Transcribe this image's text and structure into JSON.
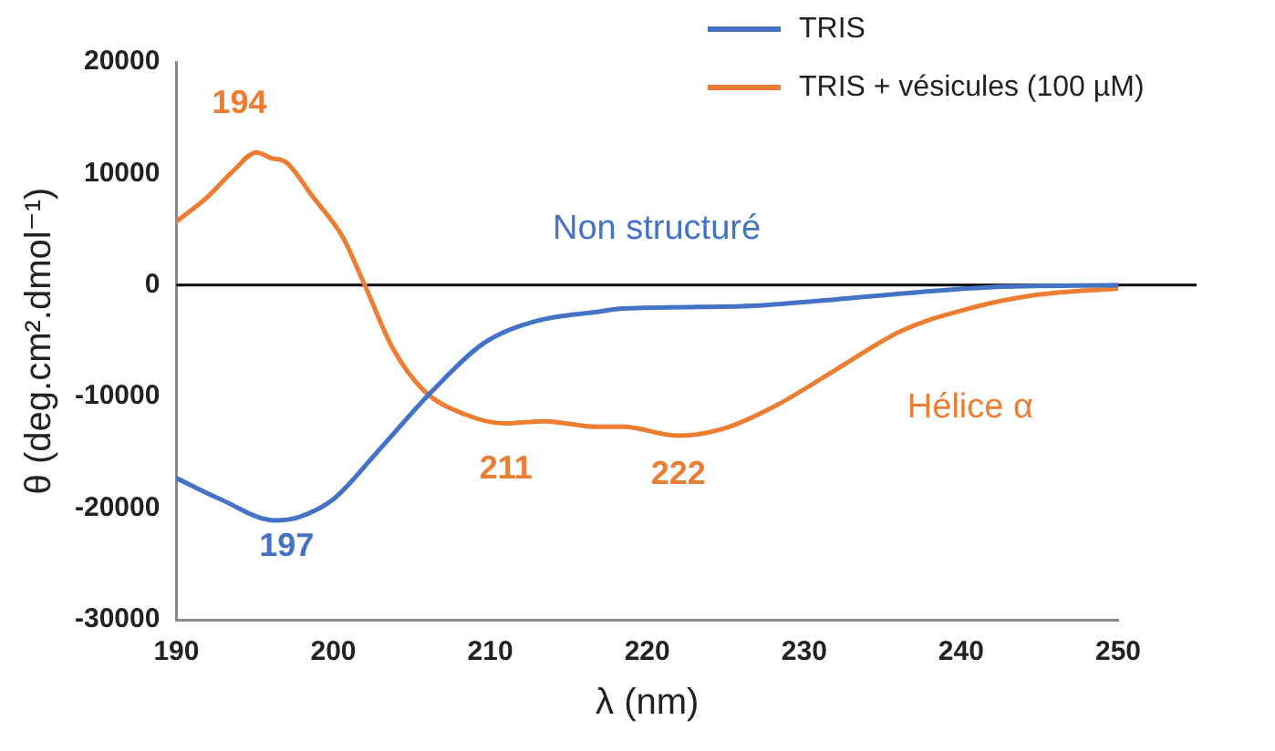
{
  "chart_data": {
    "type": "line",
    "xlabel": "λ (nm)",
    "ylabel": "θ (deg.cm².dmol⁻¹)",
    "xlim": [
      190,
      250
    ],
    "xticks": [
      190,
      200,
      210,
      220,
      230,
      240,
      250
    ],
    "ylim": [
      -30000,
      20000
    ],
    "yticks": [
      -30000,
      -20000,
      -10000,
      0,
      10000,
      20000
    ],
    "grid": false,
    "legend": "top right",
    "marker": "none",
    "line_style": "solid",
    "ref_lines": [
      {
        "axis": "y",
        "value": 0,
        "label": null,
        "color": "#000000"
      }
    ],
    "series": [
      {
        "name": "TRIS",
        "color": "#4472c4",
        "x": [
          190,
          192.8,
          196.3,
          197.8,
          200,
          202.9,
          206.3,
          209.6,
          213,
          216.8,
          218.5,
          226,
          231,
          237.5,
          241.8,
          250
        ],
        "values": [
          -17300,
          -19200,
          -21100,
          -20800,
          -19200,
          -14800,
          -9500,
          -5200,
          -3200,
          -2400,
          -2100,
          -1900,
          -1400,
          -600,
          -200,
          0
        ]
      },
      {
        "name": "TRIS + vésicules (100 µM)",
        "color": "#ed7d31",
        "x": [
          190,
          191.9,
          193.6,
          195.1,
          196,
          197,
          198.7,
          200.6,
          202,
          203.8,
          205.8,
          208.4,
          210.9,
          213.4,
          216.8,
          218.5,
          221.9,
          224.8,
          228.2,
          232,
          236.2,
          240.5,
          244.7,
          250
        ],
        "values": [
          5700,
          7800,
          10200,
          11900,
          11400,
          11000,
          7900,
          4300,
          0,
          -5700,
          -9500,
          -11600,
          -12400,
          -12200,
          -12700,
          -12700,
          -13500,
          -12900,
          -10800,
          -7600,
          -4100,
          -2100,
          -900,
          -300
        ]
      }
    ],
    "annotations": [
      "194",
      "197",
      "211",
      "222",
      "Non structuré",
      "Hélice α"
    ]
  }
}
